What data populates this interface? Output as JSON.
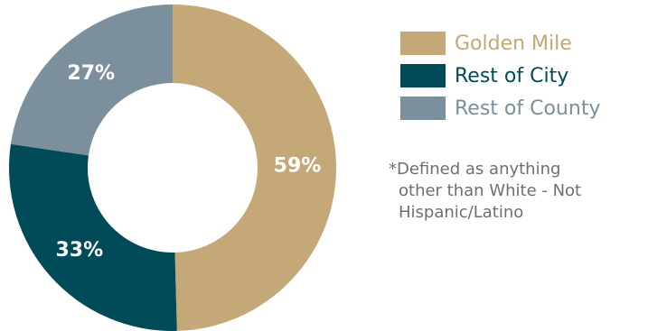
{
  "chart_data": {
    "type": "pie",
    "donut": true,
    "categories": [
      "Golden Mile",
      "Rest of City",
      "Rest of County"
    ],
    "values": [
      59,
      33,
      27
    ],
    "labels": [
      "59%",
      "33%",
      "27%"
    ],
    "title": "",
    "legend_placement": "right"
  },
  "colors": {
    "golden_mile": "#c4a878",
    "rest_of_city": "#004b57",
    "rest_of_county": "#7b8f9c",
    "label_text": "#ffffff",
    "footnote_text": "#6e6f71"
  },
  "legend": {
    "items": [
      {
        "label": "Golden Mile"
      },
      {
        "label": "Rest of City"
      },
      {
        "label": "Rest of County"
      }
    ]
  },
  "footnote": {
    "line1": "*Defined as anything",
    "line2": "other than White - Not",
    "line3": "Hispanic/Latino"
  }
}
